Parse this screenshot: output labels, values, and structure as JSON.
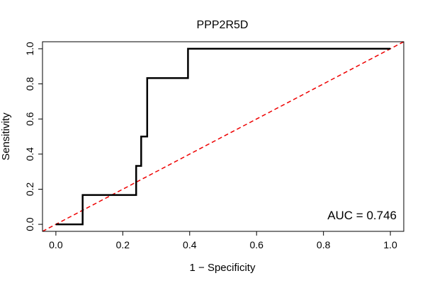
{
  "chart_data": {
    "type": "line",
    "title": "PPP2R5D",
    "xlabel": "1 − Specificity",
    "ylabel": "Sensitivity",
    "xlim": [
      -0.04,
      1.04
    ],
    "ylim": [
      -0.04,
      1.04
    ],
    "x_ticks": [
      0.0,
      0.2,
      0.4,
      0.6,
      0.8,
      1.0
    ],
    "x_tick_labels": [
      "0.0",
      "0.2",
      "0.4",
      "0.6",
      "0.8",
      "1.0"
    ],
    "y_ticks": [
      0.0,
      0.2,
      0.4,
      0.6,
      0.8,
      1.0
    ],
    "y_tick_labels": [
      "0.0",
      "0.2",
      "0.4",
      "0.6",
      "0.8",
      "1.0"
    ],
    "series": [
      {
        "name": "ROC",
        "color": "#000000",
        "x": [
          0.0,
          0.08,
          0.08,
          0.24,
          0.24,
          0.255,
          0.255,
          0.265,
          0.265,
          0.273,
          0.273,
          0.395,
          0.395,
          1.0
        ],
        "y": [
          0.0,
          0.0,
          0.167,
          0.167,
          0.333,
          0.333,
          0.5,
          0.5,
          0.5,
          0.5,
          0.833,
          0.833,
          1.0,
          1.0
        ]
      },
      {
        "name": "reference",
        "color": "#ee0000",
        "dashed": true,
        "x": [
          -0.04,
          1.04
        ],
        "y": [
          -0.04,
          1.04
        ]
      }
    ],
    "annotation": "AUC = 0.746"
  }
}
